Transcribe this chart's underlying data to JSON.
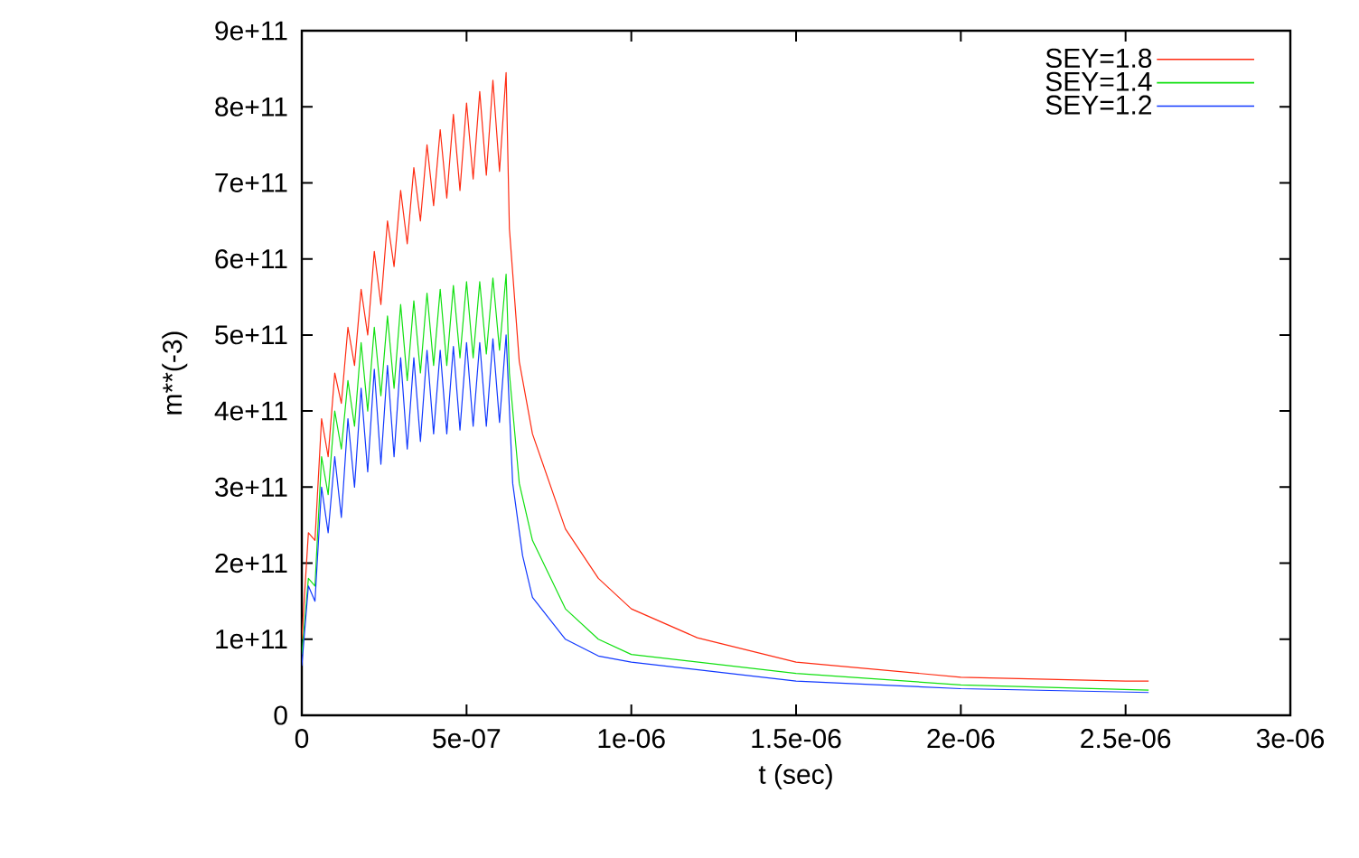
{
  "chart_data": {
    "type": "line",
    "xlabel": "t (sec)",
    "ylabel": "m**(-3)",
    "xlim": [
      0,
      3e-06
    ],
    "ylim": [
      0,
      900000000000.0
    ],
    "xticks": [
      {
        "value": 0,
        "label": "0"
      },
      {
        "value": 5e-07,
        "label": "5e-07"
      },
      {
        "value": 1e-06,
        "label": "1e-06"
      },
      {
        "value": 1.5e-06,
        "label": "1.5e-06"
      },
      {
        "value": 2e-06,
        "label": "2e-06"
      },
      {
        "value": 2.5e-06,
        "label": "2.5e-06"
      },
      {
        "value": 3e-06,
        "label": "3e-06"
      }
    ],
    "yticks": [
      {
        "value": 0,
        "label": "0"
      },
      {
        "value": 100000000000.0,
        "label": "1e+11"
      },
      {
        "value": 200000000000.0,
        "label": "2e+11"
      },
      {
        "value": 300000000000.0,
        "label": "3e+11"
      },
      {
        "value": 400000000000.0,
        "label": "4e+11"
      },
      {
        "value": 500000000000.0,
        "label": "5e+11"
      },
      {
        "value": 600000000000.0,
        "label": "6e+11"
      },
      {
        "value": 700000000000.0,
        "label": "7e+11"
      },
      {
        "value": 800000000000.0,
        "label": "8e+11"
      },
      {
        "value": 900000000000.0,
        "label": "9e+11"
      }
    ],
    "legend": "top right",
    "series": [
      {
        "name": "SEY=1.8",
        "color": "#ff2a10",
        "x": [
          0,
          2e-08,
          4e-08,
          6e-08,
          8e-08,
          1e-07,
          1.2e-07,
          1.4e-07,
          1.6e-07,
          1.8e-07,
          2e-07,
          2.2e-07,
          2.4e-07,
          2.6e-07,
          2.8e-07,
          3e-07,
          3.2e-07,
          3.4e-07,
          3.6e-07,
          3.8e-07,
          4e-07,
          4.2e-07,
          4.4e-07,
          4.6e-07,
          4.8e-07,
          5e-07,
          5.2e-07,
          5.4e-07,
          5.6e-07,
          5.8e-07,
          6e-07,
          6.2e-07,
          6.3e-07,
          6.6e-07,
          7e-07,
          8e-07,
          9e-07,
          1e-06,
          1.2e-06,
          1.5e-06,
          2e-06,
          2.5e-06,
          2.57e-06
        ],
        "values": [
          100000000000.0,
          240000000000.0,
          230000000000.0,
          390000000000.0,
          340000000000.0,
          450000000000.0,
          410000000000.0,
          510000000000.0,
          460000000000.0,
          560000000000.0,
          500000000000.0,
          610000000000.0,
          540000000000.0,
          650000000000.0,
          590000000000.0,
          690000000000.0,
          620000000000.0,
          720000000000.0,
          650000000000.0,
          750000000000.0,
          670000000000.0,
          770000000000.0,
          680000000000.0,
          790000000000.0,
          690000000000.0,
          805000000000.0,
          705000000000.0,
          820000000000.0,
          710000000000.0,
          835000000000.0,
          715000000000.0,
          845000000000.0,
          640000000000.0,
          465000000000.0,
          370000000000.0,
          245000000000.0,
          180000000000.0,
          140000000000.0,
          102000000000.0,
          70000000000.0,
          50000000000.0,
          45000000000.0,
          45000000000.0
        ]
      },
      {
        "name": "SEY=1.4",
        "color": "#10e010",
        "x": [
          0,
          2e-08,
          4e-08,
          6e-08,
          8e-08,
          1e-07,
          1.2e-07,
          1.4e-07,
          1.6e-07,
          1.8e-07,
          2e-07,
          2.2e-07,
          2.4e-07,
          2.6e-07,
          2.8e-07,
          3e-07,
          3.2e-07,
          3.4e-07,
          3.6e-07,
          3.8e-07,
          4e-07,
          4.2e-07,
          4.4e-07,
          4.6e-07,
          4.8e-07,
          5e-07,
          5.2e-07,
          5.4e-07,
          5.6e-07,
          5.8e-07,
          6e-07,
          6.2e-07,
          6.3e-07,
          6.6e-07,
          7e-07,
          8e-07,
          9e-07,
          1e-06,
          1.5e-06,
          2e-06,
          2.57e-06
        ],
        "values": [
          80000000000.0,
          180000000000.0,
          170000000000.0,
          340000000000.0,
          290000000000.0,
          400000000000.0,
          350000000000.0,
          440000000000.0,
          380000000000.0,
          490000000000.0,
          400000000000.0,
          510000000000.0,
          420000000000.0,
          525000000000.0,
          430000000000.0,
          540000000000.0,
          440000000000.0,
          545000000000.0,
          450000000000.0,
          555000000000.0,
          460000000000.0,
          560000000000.0,
          460000000000.0,
          565000000000.0,
          470000000000.0,
          570000000000.0,
          470000000000.0,
          570000000000.0,
          475000000000.0,
          575000000000.0,
          480000000000.0,
          580000000000.0,
          450000000000.0,
          305000000000.0,
          230000000000.0,
          140000000000.0,
          100000000000.0,
          80000000000.0,
          55000000000.0,
          40000000000.0,
          33000000000.0
        ]
      },
      {
        "name": "SEY=1.2",
        "color": "#1038ff",
        "x": [
          0,
          2e-08,
          4e-08,
          6e-08,
          8e-08,
          1e-07,
          1.2e-07,
          1.4e-07,
          1.6e-07,
          1.8e-07,
          2e-07,
          2.2e-07,
          2.4e-07,
          2.6e-07,
          2.8e-07,
          3e-07,
          3.2e-07,
          3.4e-07,
          3.6e-07,
          3.8e-07,
          4e-07,
          4.2e-07,
          4.4e-07,
          4.6e-07,
          4.8e-07,
          5e-07,
          5.2e-07,
          5.4e-07,
          5.6e-07,
          5.8e-07,
          6e-07,
          6.2e-07,
          6.4e-07,
          6.7e-07,
          7e-07,
          8e-07,
          9e-07,
          1e-06,
          1.5e-06,
          2e-06,
          2.57e-06
        ],
        "values": [
          65000000000.0,
          170000000000.0,
          150000000000.0,
          300000000000.0,
          240000000000.0,
          340000000000.0,
          260000000000.0,
          390000000000.0,
          300000000000.0,
          430000000000.0,
          320000000000.0,
          455000000000.0,
          330000000000.0,
          460000000000.0,
          340000000000.0,
          470000000000.0,
          350000000000.0,
          470000000000.0,
          360000000000.0,
          480000000000.0,
          370000000000.0,
          480000000000.0,
          370000000000.0,
          485000000000.0,
          375000000000.0,
          490000000000.0,
          380000000000.0,
          490000000000.0,
          380000000000.0,
          495000000000.0,
          385000000000.0,
          500000000000.0,
          305000000000.0,
          210000000000.0,
          155000000000.0,
          100000000000.0,
          78000000000.0,
          70000000000.0,
          45000000000.0,
          35000000000.0,
          30000000000.0
        ]
      }
    ]
  }
}
